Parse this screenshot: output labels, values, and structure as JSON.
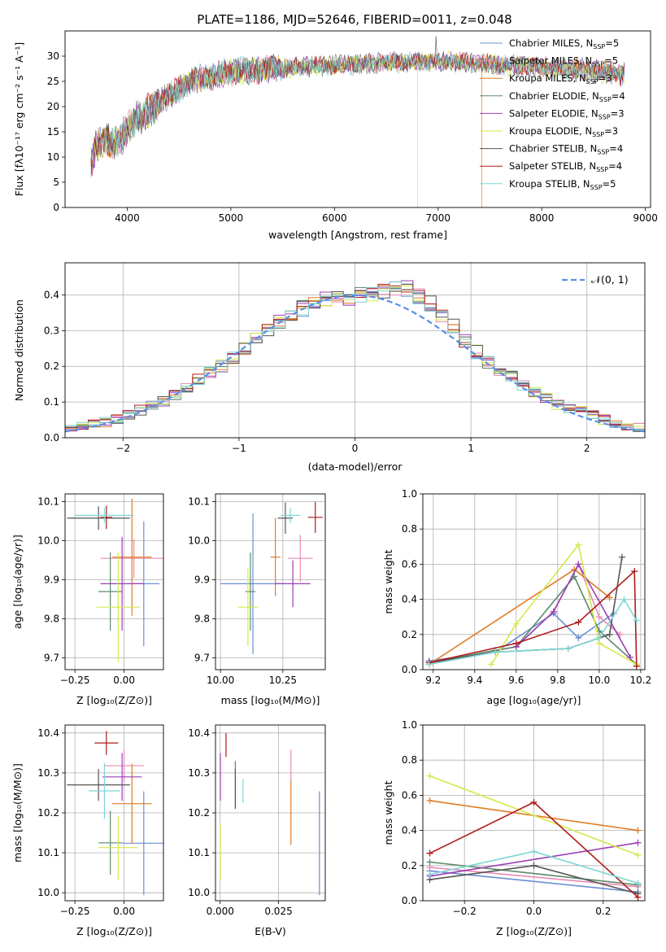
{
  "figure_title": "PLATE=1186, MJD=52646, FIBERID=0011, z=0.048",
  "colors": {
    "chabrier_miles": "#6a8fd1",
    "salpeter_miles": "#e88bb5",
    "kroupa_miles": "#e07b24",
    "chabrier_elodie": "#5a8a68",
    "salpeter_elodie": "#9b3fb5",
    "kroupa_elodie": "#d4e84a",
    "chabrier_stelib": "#555555",
    "salpeter_stelib": "#b01a1a",
    "kroupa_stelib": "#7fd6d6",
    "normal": "#5a8fe6"
  },
  "chart_data": [
    {
      "type": "line",
      "id": "spectrum",
      "xlabel": "wavelength [Angstrom, rest frame]",
      "ylabel": "Flux [fλ10⁻¹⁷ erg cm⁻² s⁻¹ A⁻¹]",
      "xlim": [
        3400,
        9050
      ],
      "ylim": [
        0,
        35
      ],
      "xticks": [
        "4000",
        "5000",
        "6000",
        "7000",
        "8000",
        "9000"
      ],
      "yticks": [
        "0",
        "5",
        "10",
        "15",
        "20",
        "25",
        "30"
      ],
      "legend_placement": "top-right",
      "continuum": [
        [
          3650,
          9
        ],
        [
          3700,
          12
        ],
        [
          3800,
          13.5
        ],
        [
          3900,
          13
        ],
        [
          3950,
          14
        ],
        [
          4050,
          17
        ],
        [
          4200,
          19
        ],
        [
          4400,
          22
        ],
        [
          4600,
          25
        ],
        [
          4800,
          26
        ],
        [
          5000,
          27
        ],
        [
          5200,
          27.2
        ],
        [
          5500,
          27.6
        ],
        [
          5800,
          28
        ],
        [
          6000,
          28.2
        ],
        [
          6300,
          28.5
        ],
        [
          6600,
          28.8
        ],
        [
          7000,
          29
        ],
        [
          7400,
          28.5
        ],
        [
          7800,
          28
        ],
        [
          8200,
          27.5
        ],
        [
          8500,
          27
        ],
        [
          8800,
          26.7
        ]
      ],
      "features": {
        "cutoffs": [
          {
            "wavelength": 3930,
            "series": "Kroupa ELODIE"
          },
          {
            "wavelength": 6800,
            "series": "Kroupa ELODIE"
          },
          {
            "wavelength": 7420,
            "series": "Kroupa MILES"
          }
        ],
        "spike": {
          "wavelength": 6980,
          "flux": 34
        }
      },
      "series": [
        {
          "name": "Chabrier MILES, N",
          "sub": "SSP",
          "suffix": "=5",
          "color": "#6a8fd1"
        },
        {
          "name": "Salpeter MILES, N",
          "sub": "SSP",
          "suffix": "=5",
          "color": "#e88bb5"
        },
        {
          "name": "Kroupa MILES, N",
          "sub": "SSP",
          "suffix": "=3",
          "color": "#e07b24"
        },
        {
          "name": "Chabrier ELODIE, N",
          "sub": "SSP",
          "suffix": "=4",
          "color": "#5a8a68"
        },
        {
          "name": "Salpeter ELODIE, N",
          "sub": "SSP",
          "suffix": "=3",
          "color": "#9b3fb5"
        },
        {
          "name": "Kroupa ELODIE, N",
          "sub": "SSP",
          "suffix": "=3",
          "color": "#d4e84a"
        },
        {
          "name": "Chabrier STELIB, N",
          "sub": "SSP",
          "suffix": "=4",
          "color": "#555555"
        },
        {
          "name": "Salpeter STELIB, N",
          "sub": "SSP",
          "suffix": "=4",
          "color": "#b01a1a"
        },
        {
          "name": "Kroupa STELIB, N",
          "sub": "SSP",
          "suffix": "=5",
          "color": "#7fd6d6"
        }
      ]
    },
    {
      "type": "histogram",
      "id": "residuals",
      "xlabel": "(data-model)/error",
      "ylabel": "Normed distribution",
      "xlim": [
        -2.5,
        2.5
      ],
      "ylim": [
        0,
        0.49
      ],
      "xticks": [
        "-2",
        "-1",
        "0",
        "1",
        "2"
      ],
      "yticks": [
        "0.0",
        "0.1",
        "0.2",
        "0.3",
        "0.4"
      ],
      "bin_width": 0.1,
      "reference": {
        "label": "𝒩(0, 1)",
        "mean": 0,
        "sigma": 1
      },
      "legend_placement": "top-right",
      "profile": [
        [
          -2.5,
          0.028
        ],
        [
          -2.2,
          0.04
        ],
        [
          -2.0,
          0.055
        ],
        [
          -1.8,
          0.085
        ],
        [
          -1.6,
          0.11
        ],
        [
          -1.4,
          0.155
        ],
        [
          -1.2,
          0.19
        ],
        [
          -1.0,
          0.235
        ],
        [
          -0.8,
          0.29
        ],
        [
          -0.6,
          0.335
        ],
        [
          -0.4,
          0.37
        ],
        [
          -0.2,
          0.39
        ],
        [
          0,
          0.395
        ],
        [
          0.2,
          0.41
        ],
        [
          0.4,
          0.425
        ],
        [
          0.6,
          0.39
        ],
        [
          0.8,
          0.33
        ],
        [
          1.0,
          0.255
        ],
        [
          1.2,
          0.2
        ],
        [
          1.4,
          0.16
        ],
        [
          1.6,
          0.12
        ],
        [
          1.8,
          0.085
        ],
        [
          2.0,
          0.07
        ],
        [
          2.2,
          0.045
        ],
        [
          2.5,
          0.025
        ]
      ]
    },
    {
      "type": "scatter",
      "id": "age-vs-Z",
      "xlabel": "Z [log₁₀(Z/Z⊙)]",
      "ylabel": "age  [log₁₀(age/yr)]",
      "xlim": [
        -0.3,
        0.2
      ],
      "ylim": [
        9.67,
        10.12
      ],
      "xticks": [
        "-0.25",
        "0.00"
      ],
      "yticks": [
        "9.7",
        "9.8",
        "9.9",
        "10.0",
        "10.1"
      ],
      "points": [
        {
          "color": "#6a8fd1",
          "x": 0.1,
          "y": 9.89,
          "xerr": 0.08,
          "yerr": 0.16
        },
        {
          "color": "#e88bb5",
          "x": 0.05,
          "y": 9.955,
          "xerr": 0.17,
          "yerr": 0.05
        },
        {
          "color": "#e07b24",
          "x": 0.04,
          "y": 9.958,
          "xerr": 0.1,
          "yerr": 0.15
        },
        {
          "color": "#5a8a68",
          "x": -0.07,
          "y": 9.87,
          "xerr": 0.06,
          "yerr": 0.1
        },
        {
          "color": "#9b3fb5",
          "x": -0.01,
          "y": 9.89,
          "xerr": 0.11,
          "yerr": 0.12
        },
        {
          "color": "#d4e84a",
          "x": -0.03,
          "y": 9.83,
          "xerr": 0.11,
          "yerr": 0.14
        },
        {
          "color": "#555555",
          "x": -0.13,
          "y": 10.058,
          "xerr": 0.16,
          "yerr": 0.03
        },
        {
          "color": "#b01a1a",
          "x": -0.09,
          "y": 10.06,
          "xerr": 0.03,
          "yerr": 0.03
        },
        {
          "color": "#7fd6d6",
          "x": -0.1,
          "y": 10.065,
          "xerr": 0.15,
          "yerr": 0.02
        }
      ]
    },
    {
      "type": "scatter",
      "id": "age-vs-mass",
      "xlabel": "mass [log₁₀(M/M⊙)]",
      "ylabel": "",
      "xlim": [
        9.98,
        10.42
      ],
      "ylim": [
        9.67,
        10.12
      ],
      "xticks": [
        "10.00",
        "10.25"
      ],
      "yticks": [
        "9.7",
        "9.8",
        "9.9",
        "10.0",
        "10.1"
      ],
      "points": [
        {
          "color": "#6a8fd1",
          "x": 10.13,
          "y": 9.89,
          "xerr": 0.13,
          "yerr": 0.18
        },
        {
          "color": "#e88bb5",
          "x": 10.32,
          "y": 9.955,
          "xerr": 0.05,
          "yerr": 0.06
        },
        {
          "color": "#e07b24",
          "x": 10.22,
          "y": 9.958,
          "xerr": 0.02,
          "yerr": 0.1
        },
        {
          "color": "#5a8a68",
          "x": 10.12,
          "y": 9.87,
          "xerr": 0.02,
          "yerr": 0.1
        },
        {
          "color": "#9b3fb5",
          "x": 10.29,
          "y": 9.89,
          "xerr": 0.07,
          "yerr": 0.06
        },
        {
          "color": "#d4e84a",
          "x": 10.11,
          "y": 9.83,
          "xerr": 0.04,
          "yerr": 0.1
        },
        {
          "color": "#555555",
          "x": 10.26,
          "y": 10.058,
          "xerr": 0.03,
          "yerr": 0.04
        },
        {
          "color": "#b01a1a",
          "x": 10.38,
          "y": 10.06,
          "xerr": 0.03,
          "yerr": 0.04
        },
        {
          "color": "#7fd6d6",
          "x": 10.28,
          "y": 10.065,
          "xerr": 0.04,
          "yerr": 0.02
        }
      ]
    },
    {
      "type": "line",
      "id": "mass-weight-vs-age",
      "xlabel": "age  [log₁₀(age/yr)]",
      "ylabel": "mass weight",
      "xlim": [
        9.15,
        10.22
      ],
      "ylim": [
        0,
        1
      ],
      "xticks": [
        "9.2",
        "9.4",
        "9.6",
        "9.8",
        "10.0",
        "10.2"
      ],
      "yticks": [
        "0.0",
        "0.2",
        "0.4",
        "0.6",
        "0.8",
        "1.0"
      ],
      "grid": true,
      "series": [
        {
          "color": "#6a8fd1",
          "points": [
            [
              9.18,
              0.05
            ],
            [
              9.5,
              0.1
            ],
            [
              9.78,
              0.32
            ],
            [
              9.9,
              0.18
            ],
            [
              10.07,
              0.32
            ]
          ]
        },
        {
          "color": "#e88bb5",
          "points": [
            [
              9.2,
              0.04
            ],
            [
              9.6,
              0.13
            ],
            [
              9.78,
              0.33
            ],
            [
              9.9,
              0.6
            ],
            [
              10.0,
              0.3
            ],
            [
              10.1,
              0.2
            ]
          ]
        },
        {
          "color": "#e07b24",
          "points": [
            [
              9.18,
              0.03
            ],
            [
              9.88,
              0.57
            ],
            [
              10.05,
              0.41
            ]
          ]
        },
        {
          "color": "#5a8a68",
          "points": [
            [
              9.18,
              0.04
            ],
            [
              9.5,
              0.11
            ],
            [
              9.6,
              0.13
            ],
            [
              9.88,
              0.53
            ],
            [
              10.0,
              0.22
            ],
            [
              10.18,
              0.03
            ]
          ]
        },
        {
          "color": "#9b3fb5",
          "points": [
            [
              9.6,
              0.13
            ],
            [
              9.78,
              0.33
            ],
            [
              9.9,
              0.6
            ],
            [
              10.15,
              0.07
            ]
          ]
        },
        {
          "color": "#d4e84a",
          "points": [
            [
              9.48,
              0.03
            ],
            [
              9.6,
              0.26
            ],
            [
              9.9,
              0.71
            ],
            [
              10.0,
              0.15
            ],
            [
              10.18,
              0.03
            ]
          ]
        },
        {
          "color": "#555555",
          "points": [
            [
              9.18,
              0.04
            ],
            [
              9.5,
              0.1
            ],
            [
              9.85,
              0.12
            ],
            [
              10.05,
              0.2
            ],
            [
              10.11,
              0.64
            ]
          ]
        },
        {
          "color": "#b01a1a",
          "points": [
            [
              9.18,
              0.04
            ],
            [
              9.6,
              0.15
            ],
            [
              9.9,
              0.27
            ],
            [
              10.17,
              0.56
            ],
            [
              10.18,
              0.02
            ]
          ]
        },
        {
          "color": "#7fd6d6",
          "points": [
            [
              9.18,
              0.03
            ],
            [
              9.5,
              0.1
            ],
            [
              9.85,
              0.12
            ],
            [
              10.0,
              0.18
            ],
            [
              10.12,
              0.4
            ],
            [
              10.18,
              0.28
            ]
          ]
        }
      ]
    },
    {
      "type": "scatter",
      "id": "mass-vs-Z",
      "xlabel": "Z [log₁₀(Z/Z⊙)]",
      "ylabel": "mass [log₁₀(M/M⊙)]",
      "xlim": [
        -0.3,
        0.2
      ],
      "ylim": [
        9.98,
        10.42
      ],
      "xticks": [
        "-0.25",
        "0.00"
      ],
      "yticks": [
        "10.0",
        "10.1",
        "10.2",
        "10.3",
        "10.4"
      ],
      "points": [
        {
          "color": "#6a8fd1",
          "x": 0.1,
          "y": 10.124,
          "xerr": 0.11,
          "yerr": 0.13
        },
        {
          "color": "#e88bb5",
          "x": 0.0,
          "y": 10.318,
          "xerr": 0.1,
          "yerr": 0.04
        },
        {
          "color": "#e07b24",
          "x": 0.04,
          "y": 10.223,
          "xerr": 0.1,
          "yerr": 0.1
        },
        {
          "color": "#5a8a68",
          "x": -0.07,
          "y": 10.125,
          "xerr": 0.06,
          "yerr": 0.08
        },
        {
          "color": "#9b3fb5",
          "x": -0.01,
          "y": 10.29,
          "xerr": 0.1,
          "yerr": 0.06
        },
        {
          "color": "#d4e84a",
          "x": -0.03,
          "y": 10.113,
          "xerr": 0.1,
          "yerr": 0.08
        },
        {
          "color": "#555555",
          "x": -0.13,
          "y": 10.27,
          "xerr": 0.16,
          "yerr": 0.04
        },
        {
          "color": "#b01a1a",
          "x": -0.09,
          "y": 10.375,
          "xerr": 0.06,
          "yerr": 0.03
        },
        {
          "color": "#7fd6d6",
          "x": -0.1,
          "y": 10.255,
          "xerr": 0.08,
          "yerr": 0.07
        }
      ]
    },
    {
      "type": "scatter",
      "id": "mass-vs-ebv",
      "xlabel": "E(B-V)",
      "ylabel": "",
      "xlim": [
        -0.002,
        0.045
      ],
      "ylim": [
        9.98,
        10.42
      ],
      "xticks": [
        "0.000",
        "0.025"
      ],
      "yticks": [
        "10.0",
        "10.1",
        "10.2",
        "10.3",
        "10.4"
      ],
      "points": [
        {
          "color": "#6a8fd1",
          "x": 0.0425,
          "y": 10.124,
          "yerr": 0.13
        },
        {
          "color": "#e88bb5",
          "x": 0.0303,
          "y": 10.318,
          "yerr": 0.04
        },
        {
          "color": "#e07b24",
          "x": 0.0303,
          "y": 10.2,
          "yerr": 0.08
        },
        {
          "color": "#5a8a68",
          "x": 0.0065,
          "y": 10.27,
          "yerr": 0.06
        },
        {
          "color": "#9b3fb5",
          "x": 0.0001,
          "y": 10.29,
          "yerr": 0.06
        },
        {
          "color": "#d4e84a",
          "x": 0.0001,
          "y": 10.1,
          "yerr": 0.07
        },
        {
          "color": "#555555",
          "x": 0.0065,
          "y": 10.26,
          "yerr": 0.05
        },
        {
          "color": "#b01a1a",
          "x": 0.0025,
          "y": 10.37,
          "yerr": 0.03
        },
        {
          "color": "#7fd6d6",
          "x": 0.0098,
          "y": 10.255,
          "yerr": 0.03
        }
      ]
    },
    {
      "type": "line",
      "id": "mass-weight-vs-Z",
      "xlabel": "Z [log₁₀(Z/Z⊙)]",
      "ylabel": "mass weight",
      "xlim": [
        -0.32,
        0.32
      ],
      "ylim": [
        0,
        1
      ],
      "xticks": [
        "-0.2",
        "0.0",
        "0.2"
      ],
      "yticks": [
        "0.0",
        "0.2",
        "0.4",
        "0.6",
        "0.8",
        "1.0"
      ],
      "grid": true,
      "series": [
        {
          "color": "#6a8fd1",
          "points": [
            [
              -0.3,
              0.17
            ],
            [
              0.3,
              0.05
            ]
          ]
        },
        {
          "color": "#e88bb5",
          "points": [
            [
              -0.3,
              0.19
            ],
            [
              0.3,
              0.08
            ]
          ]
        },
        {
          "color": "#e07b24",
          "points": [
            [
              -0.3,
              0.57
            ],
            [
              0.3,
              0.4
            ]
          ]
        },
        {
          "color": "#5a8a68",
          "points": [
            [
              -0.3,
              0.22
            ],
            [
              0.3,
              0.09
            ]
          ]
        },
        {
          "color": "#9b3fb5",
          "points": [
            [
              -0.3,
              0.14
            ],
            [
              0.3,
              0.33
            ]
          ]
        },
        {
          "color": "#d4e84a",
          "points": [
            [
              -0.3,
              0.71
            ],
            [
              0.3,
              0.26
            ]
          ]
        },
        {
          "color": "#555555",
          "points": [
            [
              -0.3,
              0.12
            ],
            [
              0.0,
              0.2
            ],
            [
              0.3,
              0.04
            ]
          ]
        },
        {
          "color": "#b01a1a",
          "points": [
            [
              -0.3,
              0.27
            ],
            [
              0.0,
              0.56
            ],
            [
              0.3,
              0.02
            ]
          ]
        },
        {
          "color": "#7fd6d6",
          "points": [
            [
              -0.3,
              0.15
            ],
            [
              0.0,
              0.28
            ],
            [
              0.3,
              0.1
            ]
          ]
        }
      ]
    }
  ]
}
